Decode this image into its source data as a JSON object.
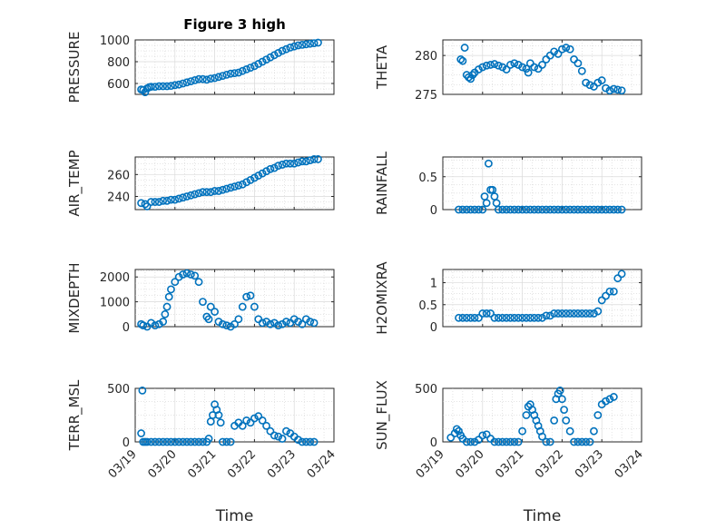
{
  "figure": {
    "title": "Figure 3 high"
  },
  "colors": {
    "marker": "#0072BD",
    "axis": "#262626"
  },
  "chart_data": [
    {
      "type": "scatter",
      "xlabel": "",
      "ylabel": "PRESSURE",
      "xlim": [
        0,
        5
      ],
      "ylim": [
        500,
        1000
      ],
      "xticks": [
        0,
        1,
        2,
        3,
        4,
        5
      ],
      "xticklabels": [
        "",
        "",
        "",
        "",
        "",
        ""
      ],
      "yticks": [
        600,
        800,
        1000
      ],
      "yticklabels": [
        "600",
        "800",
        "1000"
      ],
      "grid": true,
      "title": "Figure 3 high",
      "x": [
        0.15,
        0.2,
        0.25,
        0.3,
        0.35,
        0.4,
        0.5,
        0.6,
        0.7,
        0.8,
        0.9,
        1.0,
        1.1,
        1.2,
        1.3,
        1.4,
        1.5,
        1.6,
        1.7,
        1.8,
        1.9,
        2.0,
        2.1,
        2.2,
        2.3,
        2.4,
        2.5,
        2.6,
        2.7,
        2.8,
        2.9,
        3.0,
        3.1,
        3.2,
        3.3,
        3.4,
        3.5,
        3.6,
        3.7,
        3.8,
        3.9,
        4.0,
        4.1,
        4.2,
        4.3,
        4.4,
        4.5,
        4.6
      ],
      "y": [
        545,
        540,
        520,
        555,
        565,
        570,
        570,
        575,
        575,
        575,
        578,
        585,
        590,
        600,
        610,
        620,
        630,
        640,
        640,
        635,
        645,
        650,
        660,
        670,
        680,
        690,
        695,
        700,
        715,
        730,
        745,
        760,
        780,
        800,
        820,
        840,
        860,
        880,
        900,
        915,
        930,
        940,
        950,
        955,
        960,
        965,
        970,
        975
      ]
    },
    {
      "type": "scatter",
      "xlabel": "",
      "ylabel": "THETA",
      "xlim": [
        0,
        5
      ],
      "ylim": [
        275,
        282
      ],
      "xticks": [
        0,
        1,
        2,
        3,
        4,
        5
      ],
      "xticklabels": [
        "",
        "",
        "",
        "",
        "",
        ""
      ],
      "yticks": [
        275,
        280
      ],
      "yticklabels": [
        "275",
        "280"
      ],
      "grid": true,
      "title": "",
      "x": [
        0.45,
        0.5,
        0.55,
        0.6,
        0.65,
        0.7,
        0.75,
        0.8,
        0.9,
        1.0,
        1.1,
        1.2,
        1.3,
        1.4,
        1.5,
        1.6,
        1.7,
        1.8,
        1.9,
        2.0,
        2.1,
        2.15,
        2.2,
        2.3,
        2.4,
        2.5,
        2.6,
        2.7,
        2.8,
        2.9,
        3.0,
        3.1,
        3.2,
        3.3,
        3.4,
        3.5,
        3.6,
        3.7,
        3.8,
        3.9,
        4.0,
        4.1,
        4.2,
        4.3,
        4.4,
        4.5
      ],
      "y": [
        279.5,
        279.3,
        281.0,
        277.5,
        277.2,
        277.0,
        277.5,
        277.8,
        278.2,
        278.5,
        278.7,
        278.8,
        278.9,
        278.7,
        278.5,
        278.2,
        278.8,
        279.0,
        278.8,
        278.5,
        278.3,
        277.8,
        279.0,
        278.5,
        278.3,
        278.8,
        279.5,
        280.0,
        280.5,
        280.2,
        280.8,
        281.0,
        280.8,
        279.5,
        279.0,
        278.0,
        276.5,
        276.2,
        276.0,
        276.5,
        276.8,
        275.8,
        275.5,
        275.7,
        275.6,
        275.5
      ]
    },
    {
      "type": "scatter",
      "xlabel": "",
      "ylabel": "AIR_TEMP",
      "xlim": [
        0,
        5
      ],
      "ylim": [
        228,
        276
      ],
      "xticks": [
        0,
        1,
        2,
        3,
        4,
        5
      ],
      "xticklabels": [
        "",
        "",
        "",
        "",
        "",
        ""
      ],
      "yticks": [
        240,
        260
      ],
      "yticklabels": [
        "240",
        "260"
      ],
      "grid": true,
      "title": "",
      "x": [
        0.15,
        0.25,
        0.3,
        0.4,
        0.5,
        0.6,
        0.7,
        0.8,
        0.9,
        1.0,
        1.1,
        1.2,
        1.3,
        1.4,
        1.5,
        1.6,
        1.7,
        1.8,
        1.9,
        2.0,
        2.1,
        2.2,
        2.3,
        2.4,
        2.5,
        2.6,
        2.7,
        2.8,
        2.9,
        3.0,
        3.1,
        3.2,
        3.3,
        3.4,
        3.5,
        3.6,
        3.7,
        3.8,
        3.9,
        4.0,
        4.1,
        4.2,
        4.3,
        4.4,
        4.5,
        4.6
      ],
      "y": [
        234,
        233,
        231,
        235,
        235,
        235,
        236,
        236,
        237,
        237,
        238,
        239,
        240,
        241,
        242,
        243,
        244,
        244,
        244,
        245,
        245,
        246,
        247,
        248,
        249,
        250,
        251,
        253,
        255,
        257,
        259,
        261,
        263,
        265,
        266,
        268,
        269,
        270,
        270,
        270,
        271,
        272,
        272,
        273,
        274,
        274
      ]
    },
    {
      "type": "scatter",
      "xlabel": "",
      "ylabel": "RAINFALL",
      "xlim": [
        0,
        5
      ],
      "ylim": [
        0,
        0.8
      ],
      "xticks": [
        0,
        1,
        2,
        3,
        4,
        5
      ],
      "xticklabels": [
        "",
        "",
        "",
        "",
        "",
        ""
      ],
      "yticks": [
        0,
        0.5
      ],
      "yticklabels": [
        "0",
        "0.5"
      ],
      "grid": true,
      "title": "",
      "x": [
        0.4,
        0.5,
        0.6,
        0.7,
        0.8,
        0.9,
        1.0,
        1.05,
        1.1,
        1.15,
        1.2,
        1.25,
        1.3,
        1.35,
        1.4,
        1.5,
        1.6,
        1.7,
        1.8,
        1.9,
        2.0,
        2.1,
        2.2,
        2.3,
        2.4,
        2.5,
        2.6,
        2.7,
        2.8,
        2.9,
        3.0,
        3.1,
        3.2,
        3.3,
        3.4,
        3.5,
        3.6,
        3.7,
        3.8,
        3.9,
        4.0,
        4.1,
        4.2,
        4.3,
        4.4,
        4.5
      ],
      "y": [
        0,
        0,
        0,
        0,
        0,
        0,
        0,
        0.2,
        0.1,
        0.7,
        0.3,
        0.3,
        0.2,
        0.1,
        0,
        0,
        0,
        0,
        0,
        0,
        0,
        0,
        0,
        0,
        0,
        0,
        0,
        0,
        0,
        0,
        0,
        0,
        0,
        0,
        0,
        0,
        0,
        0,
        0,
        0,
        0,
        0,
        0,
        0,
        0,
        0
      ]
    },
    {
      "type": "scatter",
      "xlabel": "",
      "ylabel": "MIXDEPTH",
      "xlim": [
        0,
        5
      ],
      "ylim": [
        0,
        2300
      ],
      "xticks": [
        0,
        1,
        2,
        3,
        4,
        5
      ],
      "xticklabels": [
        "",
        "",
        "",
        "",
        "",
        ""
      ],
      "yticks": [
        0,
        1000,
        2000
      ],
      "yticklabels": [
        "0",
        "1000",
        "2000"
      ],
      "grid": true,
      "title": "",
      "x": [
        0.15,
        0.2,
        0.3,
        0.4,
        0.5,
        0.6,
        0.7,
        0.75,
        0.8,
        0.85,
        0.9,
        1.0,
        1.1,
        1.2,
        1.3,
        1.4,
        1.5,
        1.6,
        1.7,
        1.8,
        1.85,
        1.9,
        2.0,
        2.1,
        2.2,
        2.3,
        2.4,
        2.5,
        2.6,
        2.7,
        2.8,
        2.9,
        3.0,
        3.1,
        3.2,
        3.3,
        3.4,
        3.5,
        3.6,
        3.7,
        3.8,
        3.9,
        4.0,
        4.1,
        4.2,
        4.3,
        4.4,
        4.5
      ],
      "y": [
        100,
        50,
        0,
        150,
        50,
        100,
        200,
        500,
        800,
        1200,
        1500,
        1800,
        2000,
        2100,
        2150,
        2100,
        2050,
        1800,
        1000,
        400,
        300,
        800,
        600,
        200,
        100,
        50,
        0,
        100,
        300,
        800,
        1200,
        1250,
        800,
        300,
        150,
        200,
        100,
        150,
        50,
        100,
        200,
        150,
        300,
        200,
        100,
        300,
        200,
        150
      ]
    },
    {
      "type": "scatter",
      "xlabel": "",
      "ylabel": "H2OMIXRA",
      "xlim": [
        0,
        5
      ],
      "ylim": [
        0,
        1.3
      ],
      "xticks": [
        0,
        1,
        2,
        3,
        4,
        5
      ],
      "xticklabels": [
        "",
        "",
        "",
        "",
        "",
        ""
      ],
      "yticks": [
        0,
        0.5,
        1
      ],
      "yticklabels": [
        "0",
        "0.5",
        "1"
      ],
      "grid": true,
      "title": "",
      "x": [
        0.4,
        0.5,
        0.6,
        0.7,
        0.8,
        0.9,
        1.0,
        1.1,
        1.2,
        1.3,
        1.4,
        1.5,
        1.6,
        1.7,
        1.8,
        1.9,
        2.0,
        2.1,
        2.2,
        2.3,
        2.4,
        2.5,
        2.6,
        2.7,
        2.8,
        2.9,
        3.0,
        3.1,
        3.2,
        3.3,
        3.4,
        3.5,
        3.6,
        3.7,
        3.8,
        3.9,
        4.0,
        4.1,
        4.2,
        4.3,
        4.4,
        4.5
      ],
      "y": [
        0.2,
        0.2,
        0.2,
        0.2,
        0.2,
        0.2,
        0.3,
        0.3,
        0.3,
        0.2,
        0.2,
        0.2,
        0.2,
        0.2,
        0.2,
        0.2,
        0.2,
        0.2,
        0.2,
        0.2,
        0.2,
        0.2,
        0.25,
        0.25,
        0.3,
        0.3,
        0.3,
        0.3,
        0.3,
        0.3,
        0.3,
        0.3,
        0.3,
        0.3,
        0.3,
        0.35,
        0.6,
        0.7,
        0.8,
        0.8,
        1.1,
        1.2
      ]
    },
    {
      "type": "scatter",
      "xlabel": "Time",
      "ylabel": "TERR_MSL",
      "xlim": [
        0,
        5
      ],
      "ylim": [
        0,
        500
      ],
      "xticks": [
        0,
        1,
        2,
        3,
        4,
        5
      ],
      "xticklabels": [
        "03/19",
        "03/20",
        "03/21",
        "03/22",
        "03/23",
        "03/24"
      ],
      "yticks": [
        0,
        500
      ],
      "yticklabels": [
        "0",
        "500"
      ],
      "grid": true,
      "title": "",
      "x": [
        0.15,
        0.18,
        0.2,
        0.25,
        0.3,
        0.4,
        0.5,
        0.6,
        0.7,
        0.8,
        0.9,
        1.0,
        1.1,
        1.2,
        1.3,
        1.4,
        1.5,
        1.6,
        1.7,
        1.8,
        1.85,
        1.9,
        1.95,
        2.0,
        2.05,
        2.1,
        2.15,
        2.2,
        2.3,
        2.4,
        2.5,
        2.6,
        2.7,
        2.8,
        2.9,
        3.0,
        3.1,
        3.2,
        3.3,
        3.4,
        3.5,
        3.6,
        3.7,
        3.8,
        3.9,
        4.0,
        4.1,
        4.2,
        4.3,
        4.4,
        4.5
      ],
      "y": [
        80,
        480,
        0,
        0,
        0,
        0,
        0,
        0,
        0,
        0,
        0,
        0,
        0,
        0,
        0,
        0,
        0,
        0,
        0,
        0,
        30,
        190,
        250,
        350,
        300,
        250,
        180,
        0,
        0,
        0,
        150,
        180,
        150,
        200,
        180,
        220,
        240,
        200,
        150,
        100,
        60,
        50,
        30,
        100,
        80,
        50,
        20,
        0,
        0,
        0,
        0
      ]
    },
    {
      "type": "scatter",
      "xlabel": "Time",
      "ylabel": "SUN_FLUX",
      "xlim": [
        0,
        5
      ],
      "ylim": [
        0,
        500
      ],
      "xticks": [
        0,
        1,
        2,
        3,
        4,
        5
      ],
      "xticklabels": [
        "03/19",
        "03/20",
        "03/21",
        "03/22",
        "03/23",
        "03/24"
      ],
      "yticks": [
        0,
        500
      ],
      "yticklabels": [
        "0",
        "500"
      ],
      "grid": true,
      "title": "",
      "x": [
        0.2,
        0.3,
        0.35,
        0.4,
        0.45,
        0.5,
        0.6,
        0.7,
        0.8,
        0.9,
        1.0,
        1.1,
        1.2,
        1.3,
        1.4,
        1.5,
        1.6,
        1.7,
        1.8,
        1.9,
        2.0,
        2.1,
        2.15,
        2.2,
        2.25,
        2.3,
        2.35,
        2.4,
        2.45,
        2.5,
        2.6,
        2.7,
        2.8,
        2.85,
        2.9,
        2.95,
        3.0,
        3.05,
        3.1,
        3.2,
        3.3,
        3.4,
        3.5,
        3.6,
        3.7,
        3.8,
        3.9,
        4.0,
        4.1,
        4.2,
        4.3
      ],
      "y": [
        40,
        80,
        120,
        100,
        60,
        30,
        0,
        0,
        0,
        20,
        60,
        70,
        30,
        0,
        0,
        0,
        0,
        0,
        0,
        0,
        100,
        250,
        330,
        350,
        300,
        250,
        200,
        150,
        100,
        50,
        0,
        0,
        200,
        400,
        450,
        480,
        400,
        300,
        200,
        100,
        0,
        0,
        0,
        0,
        0,
        100,
        250,
        350,
        380,
        400,
        420
      ]
    }
  ]
}
